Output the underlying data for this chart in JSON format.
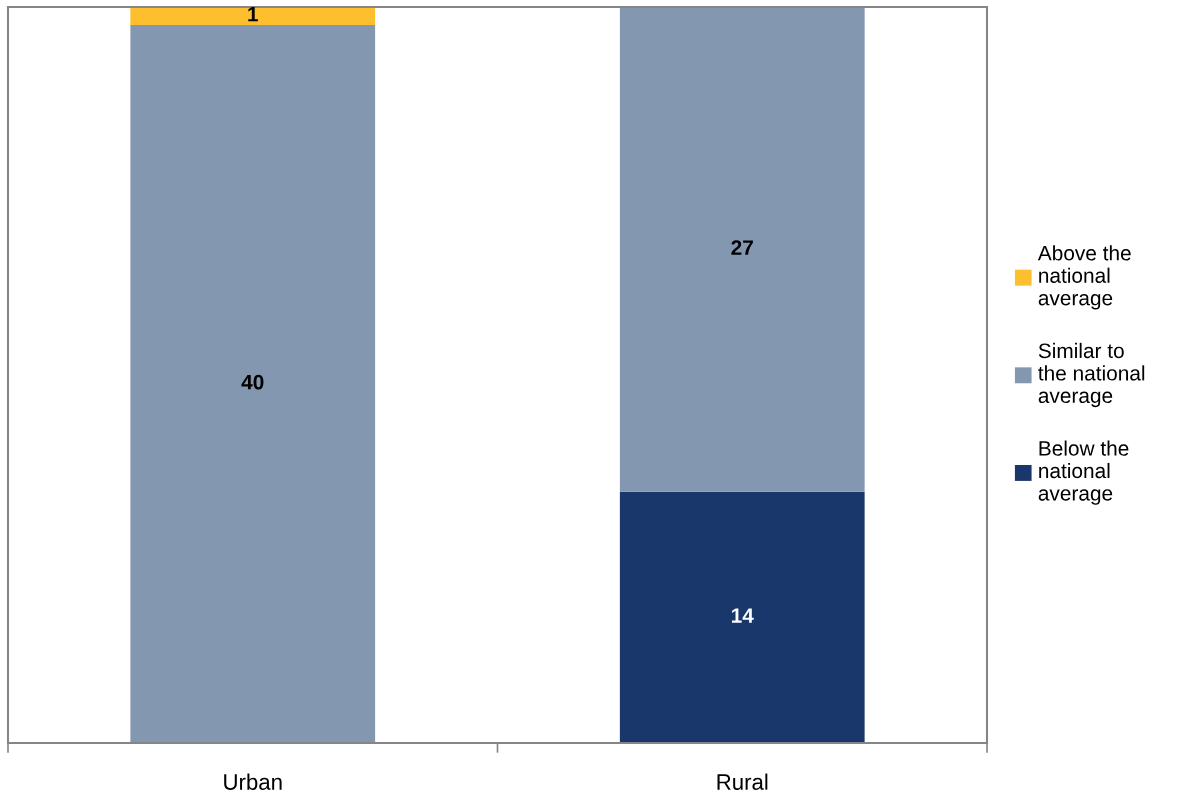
{
  "chart_data": {
    "type": "bar",
    "stacked": true,
    "categories": [
      "Urban",
      "Rural"
    ],
    "ylim": [
      0,
      41
    ],
    "tick_labels": "x",
    "legend": "right",
    "grid": false,
    "series": [
      {
        "name": "Below the national average",
        "color": "#1a376b",
        "values": [
          0,
          14
        ],
        "value_labels": [
          null,
          "14"
        ]
      },
      {
        "name": "Similar to the national average",
        "color": "#8497b0",
        "values": [
          40,
          27
        ],
        "value_labels": [
          "40",
          "27"
        ]
      },
      {
        "name": "Above the national average",
        "color": "#fdbf2d",
        "values": [
          1,
          0
        ],
        "value_labels": [
          "1",
          null
        ]
      }
    ]
  }
}
